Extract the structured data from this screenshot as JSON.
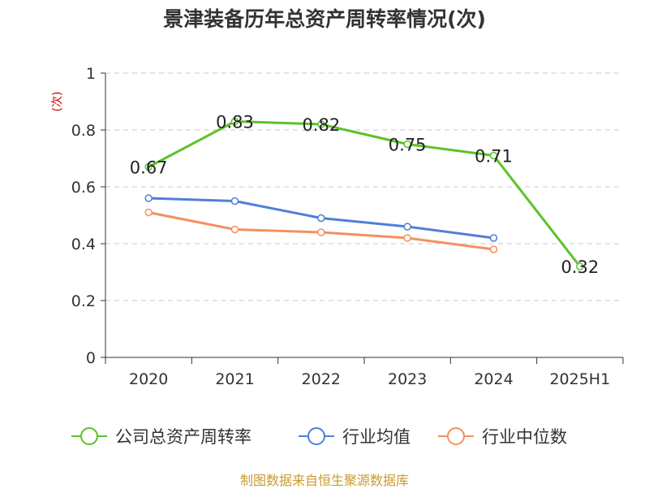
{
  "title": "景津装备历年总资产周转率情况(次)",
  "source": "制图数据来自恒生聚源数据库",
  "chart_data": {
    "type": "line",
    "title": "景津装备历年总资产周转率情况(次)",
    "ylabel": "(次)",
    "ylim": [
      0,
      1
    ],
    "yticks": [
      "0",
      "0.2",
      "0.4",
      "0.6",
      "0.8",
      "1"
    ],
    "categories": [
      "2020",
      "2021",
      "2022",
      "2023",
      "2024",
      "2025H1"
    ],
    "grid": true,
    "legend_position": "bottom",
    "series": [
      {
        "name": "公司总资产周转率",
        "color": "#5cc22b",
        "values": [
          0.67,
          0.83,
          0.82,
          0.75,
          0.71,
          0.32
        ],
        "labels": [
          "0.67",
          "0.83",
          "0.82",
          "0.75",
          "0.71",
          "0.32"
        ]
      },
      {
        "name": "行业均值",
        "color": "#4f7fd8",
        "values": [
          0.56,
          0.55,
          0.49,
          0.46,
          0.42,
          null
        ]
      },
      {
        "name": "行业中位数",
        "color": "#f5905f",
        "values": [
          0.51,
          0.45,
          0.44,
          0.42,
          0.38,
          null
        ]
      }
    ]
  }
}
